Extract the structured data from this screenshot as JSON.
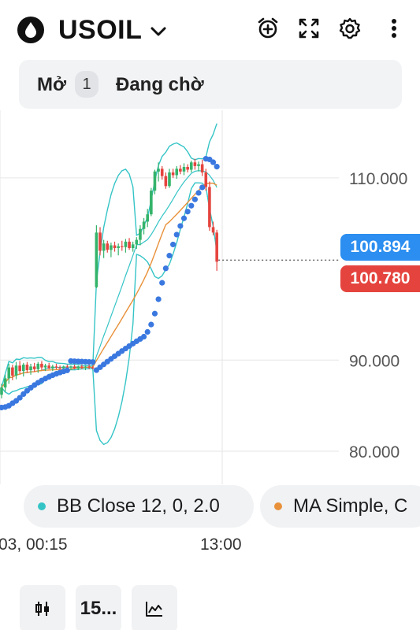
{
  "header": {
    "symbol": "USOIL",
    "icons": [
      "oil-drop-icon",
      "chevron-down-icon",
      "alarm-add-icon",
      "fullscreen-icon",
      "gear-icon",
      "more-vertical-icon"
    ]
  },
  "tabs": {
    "open_label": "Mở",
    "open_count": "1",
    "pending_label": "Đang chờ"
  },
  "prices": {
    "bid": "100.894",
    "ask": "100.780",
    "bid_color": "#2b8ef0",
    "ask_color": "#e5443e"
  },
  "chart_data": {
    "type": "candlestick",
    "ylim": [
      77,
      114
    ],
    "y_ticks": [
      "110.000",
      "90.000",
      "80.000"
    ],
    "y_tick_values": [
      110,
      90,
      80
    ],
    "x_tick_labels": [
      "03, 00:15",
      "13:00"
    ],
    "candles": [
      {
        "o": 86.2,
        "h": 87.4,
        "l": 85.8,
        "c": 87.0
      },
      {
        "o": 87.0,
        "h": 88.4,
        "l": 86.5,
        "c": 88.0
      },
      {
        "o": 88.0,
        "h": 89.6,
        "l": 87.4,
        "c": 89.2
      },
      {
        "o": 89.2,
        "h": 89.5,
        "l": 87.8,
        "c": 88.3
      },
      {
        "o": 88.3,
        "h": 89.8,
        "l": 87.9,
        "c": 89.4
      },
      {
        "o": 89.4,
        "h": 89.9,
        "l": 88.5,
        "c": 88.8
      },
      {
        "o": 88.8,
        "h": 89.7,
        "l": 88.2,
        "c": 89.5
      },
      {
        "o": 89.5,
        "h": 89.8,
        "l": 88.6,
        "c": 88.9
      },
      {
        "o": 88.9,
        "h": 89.6,
        "l": 88.4,
        "c": 89.3
      },
      {
        "o": 89.3,
        "h": 89.7,
        "l": 88.7,
        "c": 89.0
      },
      {
        "o": 89.0,
        "h": 89.8,
        "l": 88.6,
        "c": 89.6
      },
      {
        "o": 89.6,
        "h": 89.9,
        "l": 88.9,
        "c": 89.2
      },
      {
        "o": 89.2,
        "h": 89.6,
        "l": 88.8,
        "c": 89.4
      },
      {
        "o": 89.4,
        "h": 89.7,
        "l": 89.0,
        "c": 89.1
      },
      {
        "o": 89.1,
        "h": 89.5,
        "l": 88.8,
        "c": 89.3
      },
      {
        "o": 89.3,
        "h": 89.6,
        "l": 89.0,
        "c": 89.2
      },
      {
        "o": 89.2,
        "h": 89.4,
        "l": 88.9,
        "c": 89.1
      },
      {
        "o": 89.1,
        "h": 89.4,
        "l": 88.9,
        "c": 89.3
      },
      {
        "o": 89.3,
        "h": 89.5,
        "l": 89.0,
        "c": 89.2
      },
      {
        "o": 89.2,
        "h": 89.4,
        "l": 88.9,
        "c": 89.3
      },
      {
        "o": 89.3,
        "h": 89.5,
        "l": 89.0,
        "c": 89.1
      },
      {
        "o": 89.1,
        "h": 89.4,
        "l": 88.9,
        "c": 89.3
      },
      {
        "o": 89.3,
        "h": 89.5,
        "l": 89.0,
        "c": 89.2
      },
      {
        "o": 89.2,
        "h": 89.4,
        "l": 88.9,
        "c": 89.3
      },
      {
        "o": 89.3,
        "h": 89.5,
        "l": 89.0,
        "c": 89.2
      },
      {
        "o": 89.2,
        "h": 89.4,
        "l": 89.0,
        "c": 89.1
      },
      {
        "o": 98.0,
        "h": 104.8,
        "l": 97.9,
        "c": 104.0
      },
      {
        "o": 104.0,
        "h": 104.6,
        "l": 101.5,
        "c": 102.0
      },
      {
        "o": 102.0,
        "h": 103.2,
        "l": 101.2,
        "c": 102.8
      },
      {
        "o": 102.8,
        "h": 103.1,
        "l": 101.8,
        "c": 102.1
      },
      {
        "o": 102.1,
        "h": 102.9,
        "l": 101.3,
        "c": 102.6
      },
      {
        "o": 102.6,
        "h": 103.0,
        "l": 101.9,
        "c": 102.3
      },
      {
        "o": 102.3,
        "h": 102.8,
        "l": 101.5,
        "c": 102.5
      },
      {
        "o": 102.5,
        "h": 103.1,
        "l": 102.0,
        "c": 102.4
      },
      {
        "o": 102.4,
        "h": 103.3,
        "l": 101.8,
        "c": 103.0
      },
      {
        "o": 103.0,
        "h": 103.4,
        "l": 102.1,
        "c": 102.3
      },
      {
        "o": 102.3,
        "h": 103.0,
        "l": 101.9,
        "c": 102.7
      },
      {
        "o": 102.7,
        "h": 103.5,
        "l": 102.2,
        "c": 103.2
      },
      {
        "o": 103.2,
        "h": 104.8,
        "l": 102.6,
        "c": 104.4
      },
      {
        "o": 104.4,
        "h": 105.6,
        "l": 103.8,
        "c": 105.2
      },
      {
        "o": 105.2,
        "h": 106.6,
        "l": 104.6,
        "c": 106.0
      },
      {
        "o": 106.0,
        "h": 108.9,
        "l": 105.8,
        "c": 108.6
      },
      {
        "o": 108.6,
        "h": 110.9,
        "l": 108.2,
        "c": 110.7
      },
      {
        "o": 110.7,
        "h": 111.7,
        "l": 109.6,
        "c": 111.0
      },
      {
        "o": 111.0,
        "h": 111.3,
        "l": 109.8,
        "c": 110.2
      },
      {
        "o": 110.2,
        "h": 110.6,
        "l": 108.8,
        "c": 109.1
      },
      {
        "o": 109.1,
        "h": 111.0,
        "l": 108.9,
        "c": 110.6
      },
      {
        "o": 110.6,
        "h": 111.0,
        "l": 110.0,
        "c": 110.3
      },
      {
        "o": 110.3,
        "h": 111.3,
        "l": 109.9,
        "c": 111.0
      },
      {
        "o": 111.0,
        "h": 111.4,
        "l": 110.4,
        "c": 110.7
      },
      {
        "o": 110.7,
        "h": 111.6,
        "l": 110.3,
        "c": 111.2
      },
      {
        "o": 111.2,
        "h": 111.5,
        "l": 110.6,
        "c": 110.9
      },
      {
        "o": 110.9,
        "h": 111.9,
        "l": 110.6,
        "c": 111.7
      },
      {
        "o": 111.7,
        "h": 112.1,
        "l": 110.9,
        "c": 111.3
      },
      {
        "o": 111.3,
        "h": 111.8,
        "l": 110.7,
        "c": 111.5
      },
      {
        "o": 111.5,
        "h": 112.0,
        "l": 110.2,
        "c": 110.6
      },
      {
        "o": 110.6,
        "h": 111.0,
        "l": 108.6,
        "c": 109.0
      },
      {
        "o": 109.0,
        "h": 109.6,
        "l": 104.2,
        "c": 104.6
      },
      {
        "o": 104.6,
        "h": 105.2,
        "l": 103.7,
        "c": 104.0
      },
      {
        "o": 104.0,
        "h": 104.3,
        "l": 99.8,
        "c": 100.8
      }
    ],
    "colors": {
      "up": "#34b36a",
      "down": "#e5443e",
      "bb": "#35c4c6",
      "ma": "#e8913a",
      "sar": "#3a78e0",
      "grid": "#e6e6e6"
    }
  },
  "legend": [
    {
      "color": "#35c4c6",
      "label": "BB Close 12, 0, 2.0"
    },
    {
      "color": "#e8913a",
      "label": "MA Simple, C"
    }
  ],
  "bottom": {
    "timeframe": "15...",
    "buttons": [
      "candles-icon",
      "timeframe-button",
      "indicators-icon"
    ]
  }
}
